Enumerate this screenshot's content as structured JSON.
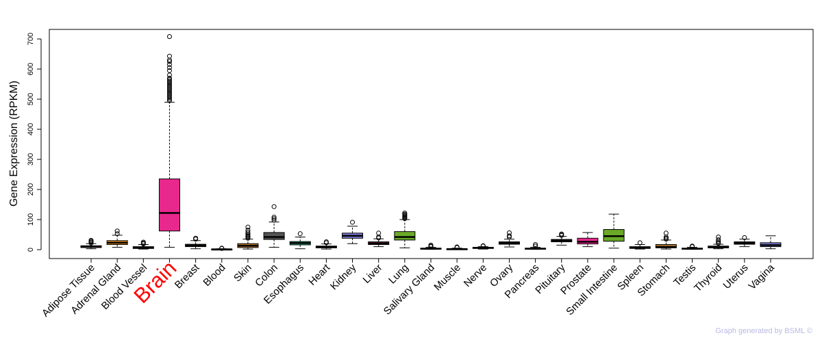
{
  "chart_data": {
    "type": "box",
    "ylabel": "Gene Expression (RPKM)",
    "yticks": [
      0,
      100,
      200,
      300,
      400,
      500,
      600,
      700
    ],
    "ylim": [
      -30,
      740
    ],
    "highlight": "Brain",
    "grid": false,
    "categories": [
      "Adipose Tissue",
      "Adrenal Gland",
      "Blood Vessel",
      "Brain",
      "Breast",
      "Blood",
      "Skin",
      "Colon",
      "Esophagus",
      "Heart",
      "Kidney",
      "Liver",
      "Lung",
      "Salivary Gland",
      "Muscle",
      "Nerve",
      "Ovary",
      "Pancreas",
      "Pituitary",
      "Prostate",
      "Small Intestine",
      "Spleen",
      "Stomach",
      "Testis",
      "Thyroid",
      "Uterus",
      "Vagina"
    ],
    "boxes": [
      {
        "name": "Adipose Tissue",
        "color": "#333333",
        "whisker_low": 3,
        "q1": 7,
        "median": 10,
        "q3": 13,
        "whisker_high": 20,
        "outliers": [
          22,
          25,
          28,
          31
        ]
      },
      {
        "name": "Adrenal Gland",
        "color": "#e8921c",
        "whisker_low": 8,
        "q1": 17,
        "median": 23,
        "q3": 30,
        "whisker_high": 48,
        "outliers": [
          53,
          62
        ]
      },
      {
        "name": "Blood Vessel",
        "color": "#666666",
        "whisker_low": 2,
        "q1": 4,
        "median": 6,
        "q3": 10,
        "whisker_high": 17,
        "outliers": [
          19,
          22,
          25
        ]
      },
      {
        "name": "Brain",
        "color": "#e8288c",
        "whisker_low": 8,
        "q1": 62,
        "median": 122,
        "q3": 235,
        "whisker_high": 490,
        "outliers": [
          495,
          500,
          505,
          510,
          515,
          520,
          525,
          530,
          535,
          540,
          545,
          550,
          555,
          560,
          565,
          570,
          580,
          595,
          605,
          615,
          625,
          630,
          643,
          708
        ]
      },
      {
        "name": "Breast",
        "color": "#5a8a2c",
        "whisker_low": 3,
        "q1": 10,
        "median": 14,
        "q3": 18,
        "whisker_high": 30,
        "outliers": [
          35,
          38
        ]
      },
      {
        "name": "Blood",
        "color": "#333333",
        "whisker_low": 0,
        "q1": 0,
        "median": 1,
        "q3": 2,
        "whisker_high": 3,
        "outliers": [
          4,
          5
        ]
      },
      {
        "name": "Skin",
        "color": "#b8782a",
        "whisker_low": 2,
        "q1": 7,
        "median": 13,
        "q3": 20,
        "whisker_high": 35,
        "outliers": [
          38,
          42,
          45,
          48,
          52,
          58,
          65,
          75
        ]
      },
      {
        "name": "Colon",
        "color": "#555555",
        "whisker_low": 8,
        "q1": 34,
        "median": 42,
        "q3": 57,
        "whisker_high": 92,
        "outliers": [
          98,
          103,
          108,
          143
        ]
      },
      {
        "name": "Esophagus",
        "color": "#2ab08a",
        "whisker_low": 3,
        "q1": 16,
        "median": 22,
        "q3": 27,
        "whisker_high": 42,
        "outliers": [
          53
        ]
      },
      {
        "name": "Heart",
        "color": "#555555",
        "whisker_low": 2,
        "q1": 6,
        "median": 9,
        "q3": 12,
        "whisker_high": 19,
        "outliers": [
          23,
          26
        ]
      },
      {
        "name": "Kidney",
        "color": "#7c7cd6",
        "whisker_low": 20,
        "q1": 38,
        "median": 46,
        "q3": 55,
        "whisker_high": 78,
        "outliers": [
          91
        ]
      },
      {
        "name": "Liver",
        "color": "#b03060",
        "whisker_low": 10,
        "q1": 17,
        "median": 21,
        "q3": 26,
        "whisker_high": 36,
        "outliers": [
          39,
          42,
          55
        ]
      },
      {
        "name": "Lung",
        "color": "#6aaa28",
        "whisker_low": 6,
        "q1": 32,
        "median": 42,
        "q3": 60,
        "whisker_high": 100,
        "outliers": [
          103,
          106,
          109,
          112,
          115,
          118,
          122
        ]
      },
      {
        "name": "Salivary Gland",
        "color": "#444444",
        "whisker_low": 1,
        "q1": 2,
        "median": 3,
        "q3": 5,
        "whisker_high": 8,
        "outliers": [
          10,
          12,
          15
        ]
      },
      {
        "name": "Muscle",
        "color": "#444444",
        "whisker_low": 0,
        "q1": 1,
        "median": 2,
        "q3": 3,
        "whisker_high": 5,
        "outliers": [
          7,
          9
        ]
      },
      {
        "name": "Nerve",
        "color": "#555555",
        "whisker_low": 2,
        "q1": 4,
        "median": 6,
        "q3": 8,
        "whisker_high": 10,
        "outliers": [
          12,
          13
        ]
      },
      {
        "name": "Ovary",
        "color": "#2a8a6a",
        "whisker_low": 9,
        "q1": 18,
        "median": 22,
        "q3": 26,
        "whisker_high": 35,
        "outliers": [
          42,
          46,
          56
        ]
      },
      {
        "name": "Pancreas",
        "color": "#444444",
        "whisker_low": 1,
        "q1": 2,
        "median": 3,
        "q3": 5,
        "whisker_high": 8,
        "outliers": [
          12,
          17
        ]
      },
      {
        "name": "Pituitary",
        "color": "#6f6fc8",
        "whisker_low": 15,
        "q1": 26,
        "median": 30,
        "q3": 34,
        "whisker_high": 44,
        "outliers": [
          47,
          50,
          52
        ]
      },
      {
        "name": "Prostate",
        "color": "#e8288c",
        "whisker_low": 10,
        "q1": 19,
        "median": 26,
        "q3": 38,
        "whisker_high": 57,
        "outliers": []
      },
      {
        "name": "Small Intestine",
        "color": "#6aaa28",
        "whisker_low": 5,
        "q1": 28,
        "median": 45,
        "q3": 67,
        "whisker_high": 118,
        "outliers": []
      },
      {
        "name": "Spleen",
        "color": "#444444",
        "whisker_low": 2,
        "q1": 4,
        "median": 7,
        "q3": 10,
        "whisker_high": 17,
        "outliers": [
          23
        ]
      },
      {
        "name": "Stomach",
        "color": "#b8782a",
        "whisker_low": 2,
        "q1": 6,
        "median": 9,
        "q3": 17,
        "whisker_high": 32,
        "outliers": [
          35,
          38,
          42,
          55
        ]
      },
      {
        "name": "Testis",
        "color": "#444444",
        "whisker_low": 1,
        "q1": 2,
        "median": 3,
        "q3": 5,
        "whisker_high": 8,
        "outliers": [
          10,
          12
        ]
      },
      {
        "name": "Thyroid",
        "color": "#555555",
        "whisker_low": 3,
        "q1": 6,
        "median": 8,
        "q3": 12,
        "whisker_high": 18,
        "outliers": [
          21,
          24,
          28,
          33,
          42
        ]
      },
      {
        "name": "Uterus",
        "color": "#b8782a",
        "whisker_low": 10,
        "q1": 18,
        "median": 22,
        "q3": 26,
        "whisker_high": 35,
        "outliers": [
          40
        ]
      },
      {
        "name": "Vagina",
        "color": "#7c7cd6",
        "whisker_low": 3,
        "q1": 10,
        "median": 15,
        "q3": 23,
        "whisker_high": 46,
        "outliers": []
      }
    ]
  },
  "footer": {
    "credit": "Graph generated by BSML ©"
  }
}
